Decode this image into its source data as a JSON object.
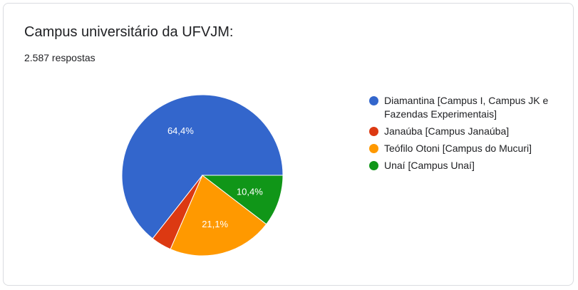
{
  "card": {
    "title": "Campus universitário da UFVJM:",
    "subtitle": "2.587 respostas"
  },
  "chart_data": {
    "type": "pie",
    "categories": [
      "Diamantina [Campus I, Campus JK e Fazendas Experimentais]",
      "Janaúba [Campus Janaúba]",
      "Teófilo Otoni [Campus do Mucuri]",
      "Unaí [Campus Unaí]"
    ],
    "values": [
      64.4,
      4.1,
      21.1,
      10.4
    ],
    "labels": [
      "64,4%",
      "",
      "21,1%",
      "10,4%"
    ],
    "colors": [
      "#3366cc",
      "#dc3912",
      "#ff9900",
      "#109618"
    ],
    "title": "Campus universitário da UFVJM:",
    "legend_position": "right"
  }
}
